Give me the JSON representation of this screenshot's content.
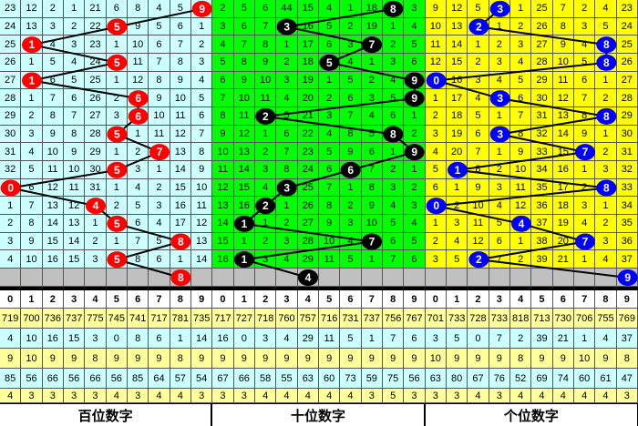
{
  "chart_data": {
    "type": "table",
    "column_digits": [
      "0",
      "1",
      "2",
      "3",
      "4",
      "5",
      "6",
      "7",
      "8",
      "9"
    ],
    "panels": [
      {
        "label": "百位数字",
        "bg": "#ccffff",
        "ball_color": "#ff0000",
        "draws": [
          9,
          5,
          1,
          5,
          1,
          6,
          6,
          5,
          7,
          5,
          0,
          4,
          5,
          8,
          5
        ],
        "next": 8,
        "rows": [
          [
            23,
            12,
            2,
            1,
            21,
            6,
            8,
            4,
            5,
            9
          ],
          [
            24,
            13,
            3,
            2,
            22,
            5,
            9,
            5,
            6,
            1
          ],
          [
            25,
            1,
            4,
            3,
            23,
            1,
            10,
            6,
            7,
            2
          ],
          [
            26,
            1,
            5,
            4,
            24,
            5,
            11,
            7,
            8,
            3
          ],
          [
            27,
            1,
            6,
            5,
            25,
            1,
            12,
            8,
            9,
            4
          ],
          [
            28,
            1,
            7,
            6,
            26,
            2,
            6,
            9,
            10,
            5
          ],
          [
            29,
            2,
            8,
            7,
            27,
            3,
            6,
            10,
            11,
            6
          ],
          [
            30,
            3,
            9,
            8,
            28,
            5,
            1,
            11,
            12,
            7
          ],
          [
            31,
            4,
            10,
            9,
            29,
            1,
            2,
            7,
            13,
            8
          ],
          [
            32,
            5,
            11,
            10,
            30,
            5,
            3,
            1,
            14,
            9
          ],
          [
            0,
            6,
            12,
            11,
            31,
            1,
            4,
            2,
            15,
            10
          ],
          [
            1,
            7,
            13,
            12,
            4,
            2,
            5,
            3,
            16,
            11
          ],
          [
            2,
            8,
            14,
            13,
            1,
            5,
            6,
            4,
            17,
            12
          ],
          [
            3,
            9,
            15,
            14,
            2,
            1,
            7,
            5,
            8,
            13
          ],
          [
            4,
            10,
            16,
            15,
            3,
            5,
            8,
            6,
            1,
            14
          ]
        ],
        "stats": [
          [
            719,
            700,
            736,
            737,
            775,
            745,
            741,
            717,
            781,
            735
          ],
          [
            4,
            10,
            16,
            15,
            3,
            0,
            8,
            6,
            1,
            14
          ],
          [
            9,
            10,
            9,
            9,
            8,
            9,
            9,
            9,
            8,
            9
          ],
          [
            85,
            56,
            66,
            56,
            66,
            56,
            85,
            64,
            57,
            54
          ],
          [
            4,
            3,
            3,
            3,
            3,
            4,
            3,
            4,
            4,
            3
          ]
        ]
      },
      {
        "label": "十位数字",
        "bg": "#00ff00",
        "ball_color": "#000000",
        "draws": [
          8,
          3,
          7,
          5,
          9,
          9,
          2,
          8,
          9,
          6,
          3,
          2,
          1,
          7,
          1
        ],
        "next": 4,
        "rows": [
          [
            2,
            5,
            6,
            44,
            15,
            4,
            1,
            18,
            8,
            3
          ],
          [
            3,
            6,
            7,
            3,
            16,
            5,
            2,
            19,
            1,
            4
          ],
          [
            4,
            7,
            8,
            1,
            17,
            6,
            3,
            7,
            2,
            5
          ],
          [
            5,
            8,
            9,
            2,
            18,
            5,
            4,
            1,
            3,
            6
          ],
          [
            6,
            9,
            10,
            3,
            19,
            1,
            5,
            2,
            4,
            9
          ],
          [
            7,
            10,
            11,
            4,
            20,
            2,
            6,
            3,
            5,
            9
          ],
          [
            8,
            11,
            2,
            5,
            21,
            3,
            7,
            4,
            6,
            1
          ],
          [
            9,
            12,
            1,
            6,
            22,
            4,
            8,
            5,
            8,
            2
          ],
          [
            10,
            13,
            2,
            7,
            23,
            5,
            9,
            6,
            1,
            9
          ],
          [
            11,
            14,
            3,
            8,
            24,
            6,
            6,
            7,
            2,
            1
          ],
          [
            12,
            15,
            4,
            3,
            25,
            7,
            1,
            8,
            3,
            2
          ],
          [
            13,
            16,
            2,
            1,
            26,
            8,
            2,
            9,
            4,
            3
          ],
          [
            14,
            1,
            1,
            2,
            27,
            9,
            3,
            10,
            5,
            4
          ],
          [
            15,
            1,
            2,
            3,
            28,
            10,
            4,
            7,
            6,
            5
          ],
          [
            16,
            1,
            3,
            4,
            29,
            11,
            5,
            1,
            7,
            6
          ]
        ],
        "stats": [
          [
            717,
            727,
            718,
            760,
            757,
            716,
            731,
            737,
            756,
            767
          ],
          [
            16,
            0,
            3,
            4,
            29,
            11,
            5,
            1,
            7,
            6
          ],
          [
            9,
            9,
            9,
            9,
            9,
            9,
            9,
            9,
            9,
            9
          ],
          [
            67,
            66,
            58,
            55,
            63,
            60,
            73,
            59,
            75,
            56
          ],
          [
            3,
            3,
            4,
            4,
            4,
            4,
            4,
            3,
            5,
            3
          ]
        ]
      },
      {
        "label": "个位数字",
        "bg": "#ffff00",
        "ball_color": "#0000ff",
        "draws": [
          3,
          2,
          8,
          8,
          0,
          3,
          8,
          3,
          7,
          1,
          8,
          0,
          4,
          7,
          2
        ],
        "next": 9,
        "rows": [
          [
            9,
            12,
            5,
            3,
            1,
            25,
            7,
            2,
            4,
            23
          ],
          [
            10,
            13,
            2,
            1,
            2,
            26,
            8,
            3,
            5,
            24
          ],
          [
            11,
            14,
            1,
            2,
            3,
            27,
            9,
            4,
            8,
            25
          ],
          [
            12,
            15,
            2,
            3,
            4,
            28,
            10,
            5,
            8,
            26
          ],
          [
            0,
            16,
            3,
            4,
            5,
            29,
            11,
            6,
            1,
            27
          ],
          [
            1,
            17,
            4,
            3,
            6,
            30,
            12,
            7,
            2,
            28
          ],
          [
            2,
            18,
            5,
            1,
            7,
            31,
            13,
            8,
            8,
            29
          ],
          [
            3,
            19,
            6,
            3,
            8,
            32,
            14,
            9,
            1,
            30
          ],
          [
            4,
            20,
            7,
            1,
            9,
            33,
            15,
            7,
            2,
            31
          ],
          [
            5,
            1,
            8,
            2,
            10,
            34,
            16,
            1,
            3,
            32
          ],
          [
            6,
            1,
            9,
            3,
            11,
            35,
            17,
            2,
            8,
            33
          ],
          [
            0,
            2,
            10,
            4,
            12,
            36,
            18,
            3,
            1,
            34
          ],
          [
            1,
            3,
            11,
            5,
            4,
            37,
            19,
            4,
            2,
            35
          ],
          [
            2,
            4,
            12,
            6,
            1,
            38,
            20,
            7,
            3,
            36
          ],
          [
            3,
            5,
            2,
            7,
            2,
            39,
            21,
            1,
            4,
            37
          ]
        ],
        "stats": [
          [
            701,
            733,
            728,
            733,
            818,
            713,
            730,
            706,
            755,
            769
          ],
          [
            3,
            5,
            0,
            7,
            2,
            39,
            21,
            1,
            4,
            37
          ],
          [
            10,
            9,
            9,
            9,
            8,
            9,
            9,
            10,
            9,
            8
          ],
          [
            63,
            80,
            67,
            76,
            52,
            69,
            74,
            60,
            61,
            47
          ],
          [
            3,
            3,
            4,
            3,
            4,
            4,
            4,
            4,
            4,
            3
          ]
        ]
      }
    ],
    "stat_row_colors": [
      "#ffff99",
      "#ccffff",
      "#ffff99",
      "#ccffff",
      "#ffff99"
    ]
  }
}
